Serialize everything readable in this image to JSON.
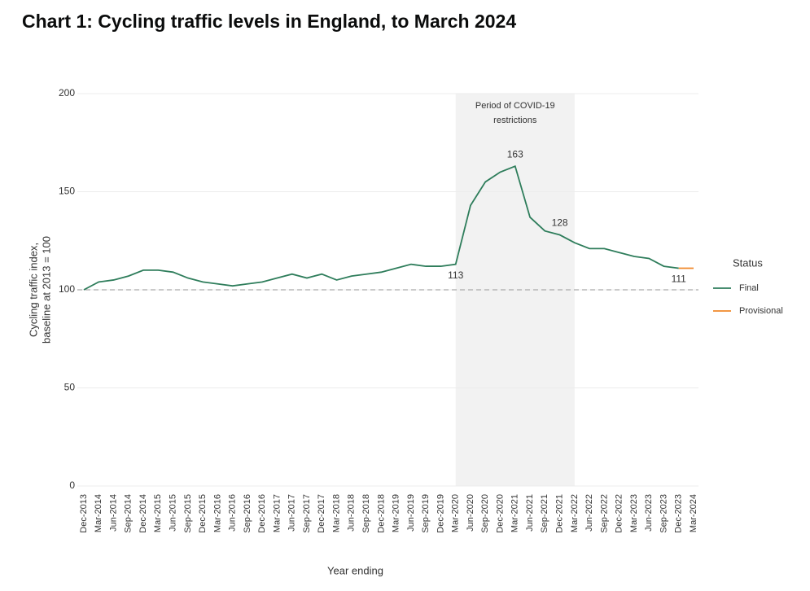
{
  "chart_data": {
    "type": "line",
    "title": "Chart 1: Cycling traffic levels in England, to March 2024",
    "y_label": [
      "Cycling traffic index,",
      "baseline at 2013 = 100"
    ],
    "x_label": "Year ending",
    "categories": [
      "Dec-2013",
      "Mar-2014",
      "Jun-2014",
      "Sep-2014",
      "Dec-2014",
      "Mar-2015",
      "Jun-2015",
      "Sep-2015",
      "Dec-2015",
      "Mar-2016",
      "Jun-2016",
      "Sep-2016",
      "Dec-2016",
      "Mar-2017",
      "Jun-2017",
      "Sep-2017",
      "Dec-2017",
      "Mar-2018",
      "Jun-2018",
      "Sep-2018",
      "Dec-2018",
      "Mar-2019",
      "Jun-2019",
      "Sep-2019",
      "Dec-2019",
      "Mar-2020",
      "Jun-2020",
      "Sep-2020",
      "Dec-2020",
      "Mar-2021",
      "Jun-2021",
      "Sep-2021",
      "Dec-2021",
      "Mar-2022",
      "Jun-2022",
      "Sep-2022",
      "Dec-2022",
      "Mar-2023",
      "Jun-2023",
      "Sep-2023",
      "Dec-2023",
      "Mar-2024"
    ],
    "series": [
      {
        "name": "Final",
        "color": "#2e7d5b",
        "values": [
          100,
          104,
          105,
          107,
          110,
          110,
          109,
          106,
          104,
          103,
          102,
          103,
          104,
          106,
          108,
          106,
          108,
          105,
          107,
          108,
          109,
          111,
          113,
          112,
          112,
          113,
          143,
          155,
          160,
          163,
          137,
          130,
          128,
          124,
          121,
          121,
          119,
          117,
          116,
          112,
          111,
          null
        ]
      },
      {
        "name": "Provisional",
        "color": "#f0882a",
        "values": [
          null,
          null,
          null,
          null,
          null,
          null,
          null,
          null,
          null,
          null,
          null,
          null,
          null,
          null,
          null,
          null,
          null,
          null,
          null,
          null,
          null,
          null,
          null,
          null,
          null,
          null,
          null,
          null,
          null,
          null,
          null,
          null,
          null,
          null,
          null,
          null,
          null,
          null,
          null,
          null,
          111,
          111
        ]
      }
    ],
    "ylim": [
      0,
      200
    ],
    "yticks": [
      0,
      50,
      100,
      150,
      200
    ],
    "grid": true,
    "reference_line": 100,
    "shade": {
      "from": "Mar-2020",
      "to": "Mar-2022",
      "label": [
        "Period of COVID-19",
        "restrictions"
      ]
    },
    "annotations": [
      {
        "x": "Mar-2020",
        "y": 113,
        "position": "below"
      },
      {
        "x": "Mar-2021",
        "y": 163,
        "position": "above"
      },
      {
        "x": "Dec-2021",
        "y": 128,
        "position": "above"
      },
      {
        "x": "Dec-2023",
        "y": 111,
        "position": "below"
      }
    ],
    "legend": {
      "title": "Status",
      "position": "right"
    }
  }
}
